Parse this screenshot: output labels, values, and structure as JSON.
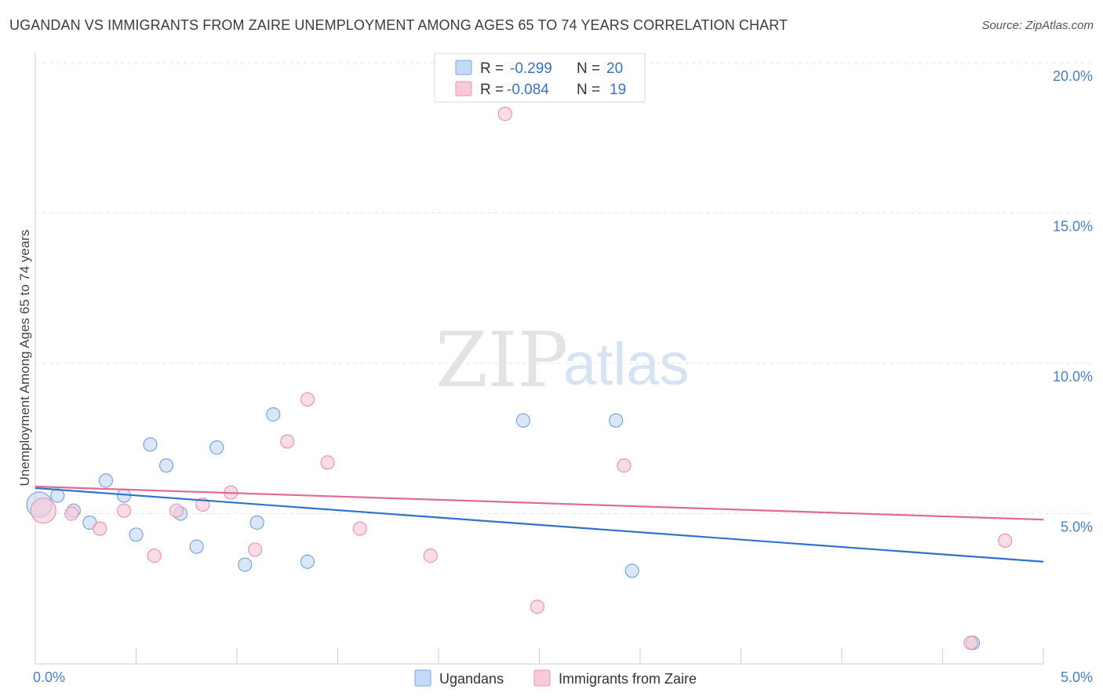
{
  "title": "UGANDAN VS IMMIGRANTS FROM ZAIRE UNEMPLOYMENT AMONG AGES 65 TO 74 YEARS CORRELATION CHART",
  "source": "Source: ZipAtlas.com",
  "watermark": {
    "zip": "ZIP",
    "atlas": "atlas"
  },
  "colors": {
    "blue_fill": "#c5daf5",
    "blue_stroke": "#7aa6dc",
    "blue_line": "#2f72cc",
    "pink_fill": "#f8cad8",
    "pink_stroke": "#e896b0",
    "pink_line": "#e06a93",
    "grid": "#e6e6e6",
    "axis_text": "#4a7fc1"
  },
  "legend": {
    "rows": [
      {
        "r_label": "R =",
        "r_value": "-0.299",
        "n_label": "N =",
        "n_value": "20"
      },
      {
        "r_label": "R =",
        "r_value": "-0.084",
        "n_label": "N =",
        "n_value": "19"
      }
    ]
  },
  "chart_data": {
    "type": "scatter",
    "title": "UGANDAN VS IMMIGRANTS FROM ZAIRE UNEMPLOYMENT AMONG AGES 65 TO 74 YEARS CORRELATION CHART",
    "xlabel": "",
    "ylabel": "Unemployment Among Ages 65 to 74 years",
    "xlim": [
      0,
      5
    ],
    "ylim": [
      0,
      20
    ],
    "x_tick_labels": [
      {
        "value": 0,
        "label": "0.0%"
      },
      {
        "value": 5,
        "label": "5.0%"
      }
    ],
    "y_tick_labels": [
      {
        "value": 5,
        "label": "5.0%"
      },
      {
        "value": 10,
        "label": "10.0%"
      },
      {
        "value": 15,
        "label": "15.0%"
      },
      {
        "value": 20,
        "label": "20.0%"
      }
    ],
    "y_gridlines": [
      5,
      10,
      15,
      20
    ],
    "series": [
      {
        "name": "Ugandans",
        "color_key": "blue",
        "points": [
          {
            "x": 0.02,
            "y": 5.3,
            "size": "large"
          },
          {
            "x": 0.11,
            "y": 5.6
          },
          {
            "x": 0.19,
            "y": 5.1
          },
          {
            "x": 0.27,
            "y": 4.7
          },
          {
            "x": 0.35,
            "y": 6.1
          },
          {
            "x": 0.44,
            "y": 5.6
          },
          {
            "x": 0.5,
            "y": 4.3
          },
          {
            "x": 0.57,
            "y": 7.3
          },
          {
            "x": 0.65,
            "y": 6.6
          },
          {
            "x": 0.72,
            "y": 5.0
          },
          {
            "x": 0.8,
            "y": 3.9
          },
          {
            "x": 0.9,
            "y": 7.2
          },
          {
            "x": 1.04,
            "y": 3.3
          },
          {
            "x": 1.1,
            "y": 4.7
          },
          {
            "x": 1.18,
            "y": 8.3
          },
          {
            "x": 1.35,
            "y": 3.4
          },
          {
            "x": 2.42,
            "y": 8.1
          },
          {
            "x": 2.88,
            "y": 8.1
          },
          {
            "x": 2.96,
            "y": 3.1
          },
          {
            "x": 4.65,
            "y": 0.7
          }
        ],
        "trend": {
          "x": [
            0,
            5
          ],
          "y": [
            5.85,
            3.4
          ]
        }
      },
      {
        "name": "Immigrants from Zaire",
        "color_key": "pink",
        "points": [
          {
            "x": 0.04,
            "y": 5.1,
            "size": "large"
          },
          {
            "x": 0.18,
            "y": 5.0
          },
          {
            "x": 0.32,
            "y": 4.5
          },
          {
            "x": 0.44,
            "y": 5.1
          },
          {
            "x": 0.59,
            "y": 3.6
          },
          {
            "x": 0.7,
            "y": 5.1
          },
          {
            "x": 0.83,
            "y": 5.3
          },
          {
            "x": 0.97,
            "y": 5.7
          },
          {
            "x": 1.09,
            "y": 3.8
          },
          {
            "x": 1.25,
            "y": 7.4
          },
          {
            "x": 1.35,
            "y": 8.8
          },
          {
            "x": 1.45,
            "y": 6.7
          },
          {
            "x": 1.61,
            "y": 4.5
          },
          {
            "x": 1.96,
            "y": 3.6
          },
          {
            "x": 2.33,
            "y": 18.3
          },
          {
            "x": 2.49,
            "y": 1.9
          },
          {
            "x": 2.92,
            "y": 6.6
          },
          {
            "x": 4.64,
            "y": 0.7
          },
          {
            "x": 4.81,
            "y": 4.1
          }
        ],
        "trend": {
          "x": [
            0,
            5
          ],
          "y": [
            5.9,
            4.8
          ]
        }
      }
    ],
    "bottom_legend": [
      "Ugandans",
      "Immigrants from Zaire"
    ]
  }
}
